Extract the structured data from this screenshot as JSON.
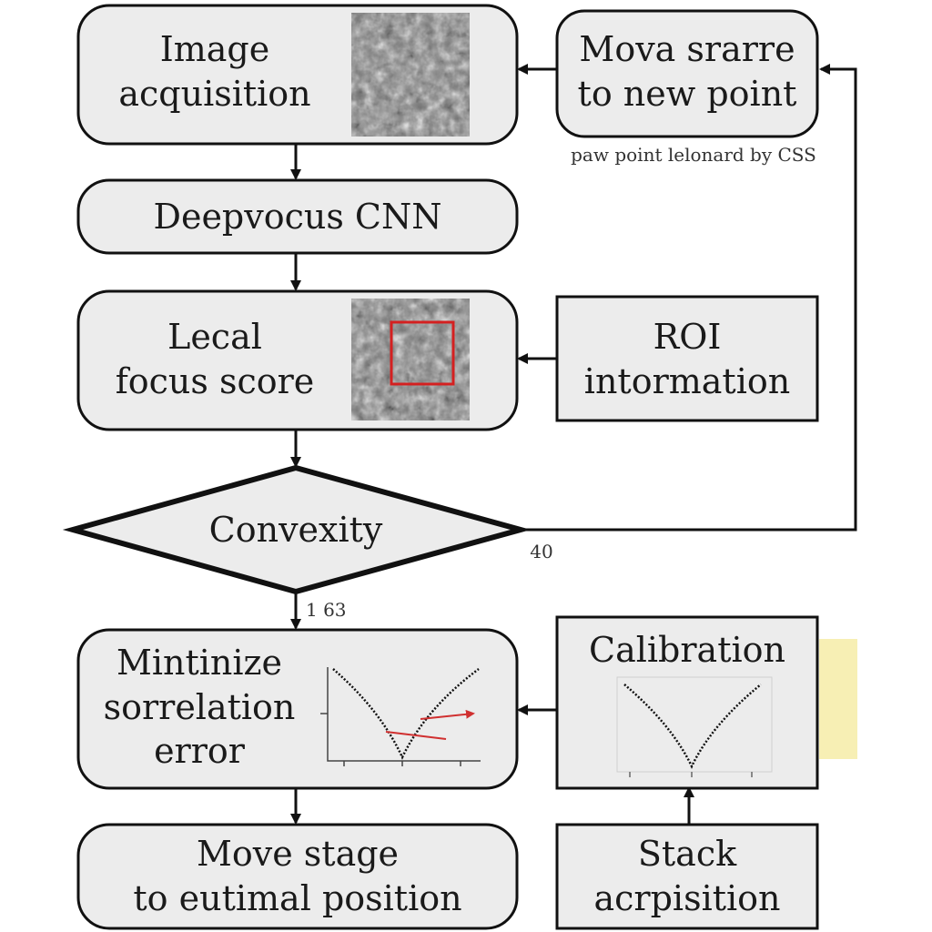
{
  "diagram": {
    "nodes": {
      "image_acquisition": {
        "line1": "Image",
        "line2": "acquisition"
      },
      "move_stage_new_point": {
        "line1": "Mova srarre",
        "line2": "to new point"
      },
      "deepfocus_cnn": {
        "label": "Deepvocus CNN"
      },
      "local_focus_score": {
        "line1": "Lecal",
        "line2": "focus score"
      },
      "roi_information": {
        "line1": "ROI",
        "line2": "intormation"
      },
      "convexity": {
        "label": "Convexity"
      },
      "minimize_error": {
        "line1": "Mintinize",
        "line2": "sorrelation",
        "line3": "error"
      },
      "calibration": {
        "label": "Calibration"
      },
      "move_stage_optimal": {
        "line1": "Move stage",
        "line2": "to eutimal position"
      },
      "stack_acquisition": {
        "line1": "Stack",
        "line2": "acrpisition"
      }
    },
    "annotations": {
      "new_point_note": "paw point lelonard by CSS",
      "no_branch": "40",
      "yes_branch": "1 63"
    },
    "colors": {
      "box_fill": "#ececec",
      "stroke": "#111111",
      "highlight_box": "#d42020",
      "error_arrow": "#d03030",
      "sticky_note": "#f7efb4"
    }
  }
}
